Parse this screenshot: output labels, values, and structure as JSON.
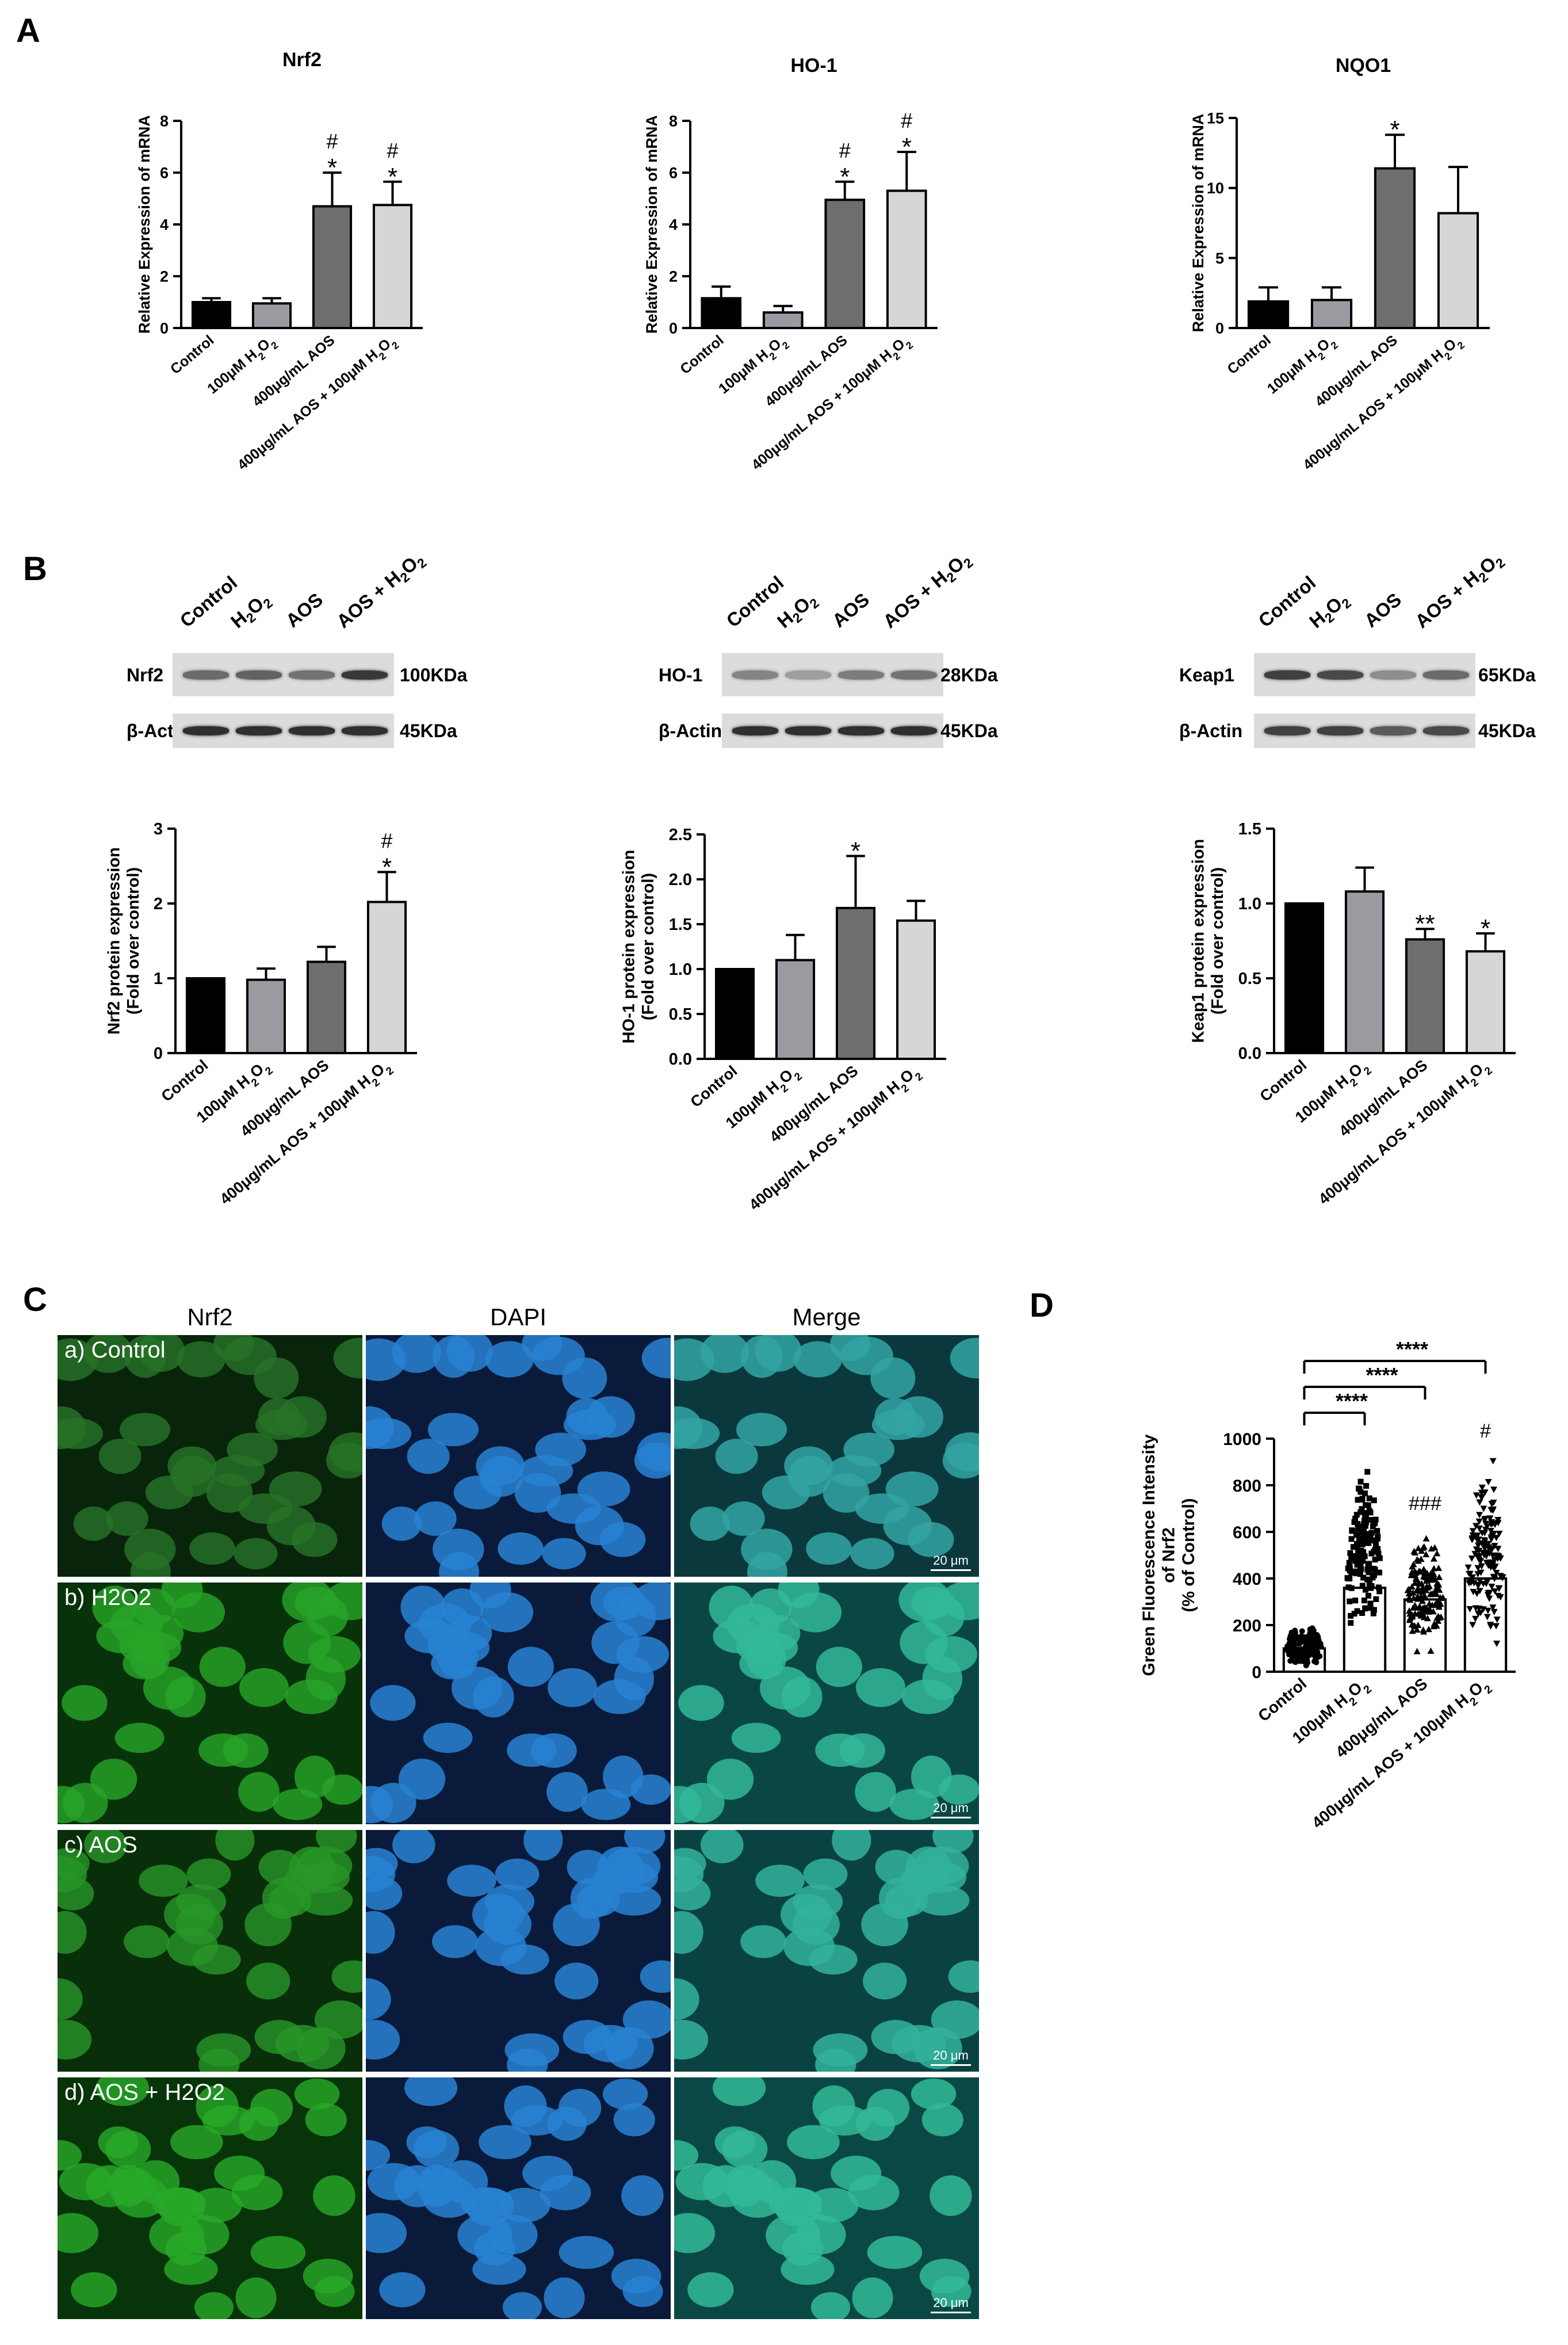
{
  "panels": {
    "a": "A",
    "b": "B",
    "c": "C",
    "d": "D"
  },
  "group_labels": [
    "Control",
    "100μM H2O2",
    "400μg/mL AOS",
    "400μg/mL AOS + 100μM H2O2"
  ],
  "western": {
    "lane_labels": [
      "Control",
      "H2O2",
      "AOS",
      "AOS + H2O2"
    ],
    "blots": [
      {
        "target": "Nrf2",
        "target_kda": "100KDa",
        "loading": "β-Actin",
        "loading_kda": "45KDa",
        "target_intensity": [
          0.55,
          0.6,
          0.5,
          0.85
        ],
        "loading_intensity": [
          0.9,
          0.9,
          0.9,
          0.9
        ]
      },
      {
        "target": "HO-1",
        "target_kda": "28KDa",
        "loading": "β-Actin",
        "loading_kda": "45KDa",
        "target_intensity": [
          0.4,
          0.25,
          0.45,
          0.5
        ],
        "loading_intensity": [
          0.9,
          0.9,
          0.9,
          0.9
        ]
      },
      {
        "target": "Keap1",
        "target_kda": "65KDa",
        "loading": "β-Actin",
        "loading_kda": "45KDa",
        "target_intensity": [
          0.8,
          0.75,
          0.35,
          0.55
        ],
        "loading_intensity": [
          0.8,
          0.8,
          0.65,
          0.75
        ]
      }
    ]
  },
  "microscopy": {
    "columns": [
      "Nrf2",
      "DAPI",
      "Merge"
    ],
    "rows": [
      "a) Control",
      "b) H2O2",
      "c) AOS",
      "d) AOS + H2O2"
    ],
    "scale_bar": "20 μm",
    "green_intensity": [
      0.35,
      0.85,
      0.7,
      0.9
    ]
  },
  "chart_data": [
    {
      "id": "A-Nrf2",
      "type": "bar",
      "title": "Nrf2",
      "xlabel": "",
      "ylabel": "Relative Expression of mRNA",
      "categories": [
        "Control",
        "100μM H2O2",
        "400μg/mL AOS",
        "400μg/mL AOS + 100μM H2O2"
      ],
      "values": [
        1.0,
        0.95,
        4.7,
        4.75
      ],
      "errors": [
        0.15,
        0.2,
        1.3,
        0.9
      ],
      "annotations": [
        "",
        "",
        "#\n*",
        "#\n*"
      ],
      "ylim": [
        0,
        8
      ],
      "yticks": [
        0,
        2,
        4,
        6,
        8
      ],
      "yticklabels": [
        "0",
        "2",
        "4",
        "6",
        "8"
      ]
    },
    {
      "id": "A-HO-1",
      "type": "bar",
      "title": "HO-1",
      "xlabel": "",
      "ylabel": "Relative Expression of mRNA",
      "categories": [
        "Control",
        "100μM H2O2",
        "400μg/mL AOS",
        "400μg/mL AOS + 100μM H2O2"
      ],
      "values": [
        1.15,
        0.6,
        4.95,
        5.3
      ],
      "errors": [
        0.45,
        0.25,
        0.7,
        1.5
      ],
      "annotations": [
        "",
        "",
        "#\n*",
        "#\n*"
      ],
      "ylim": [
        0,
        8
      ],
      "yticks": [
        0,
        2,
        4,
        6,
        8
      ],
      "yticklabels": [
        "0",
        "2",
        "4",
        "6",
        "8"
      ]
    },
    {
      "id": "A-NQO1",
      "type": "bar",
      "title": "NQO1",
      "xlabel": "",
      "ylabel": "Relative Expression of mRNA",
      "categories": [
        "Control",
        "100μM H2O2",
        "400μg/mL AOS",
        "400μg/mL AOS + 100μM H2O2"
      ],
      "values": [
        1.9,
        2.0,
        11.4,
        8.2
      ],
      "errors": [
        1.0,
        0.9,
        2.4,
        3.3
      ],
      "annotations": [
        "",
        "",
        "*",
        ""
      ],
      "ylim": [
        0,
        15
      ],
      "yticks": [
        0,
        5,
        10,
        15
      ],
      "yticklabels": [
        "0",
        "5",
        "10",
        "15"
      ]
    },
    {
      "id": "B-Nrf2",
      "type": "bar",
      "title": "",
      "xlabel": "",
      "ylabel": "Nrf2 protein expression\n(Fold over control)",
      "categories": [
        "Control",
        "100μM H2O2",
        "400μg/mL AOS",
        "400μg/mL AOS + 100μM H2O2"
      ],
      "values": [
        1.0,
        0.98,
        1.22,
        2.02
      ],
      "errors": [
        0,
        0.15,
        0.2,
        0.4
      ],
      "annotations": [
        "",
        "",
        "",
        "#\n*"
      ],
      "ylim": [
        0,
        3
      ],
      "yticks": [
        0,
        1,
        2,
        3
      ],
      "yticklabels": [
        "0",
        "1",
        "2",
        "3"
      ]
    },
    {
      "id": "B-HO-1",
      "type": "bar",
      "title": "",
      "xlabel": "",
      "ylabel": "HO-1 protein expression\n(Fold over control)",
      "categories": [
        "Control",
        "100μM H2O2",
        "400μg/mL AOS",
        "400μg/mL AOS + 100μM H2O2"
      ],
      "values": [
        1.0,
        1.1,
        1.68,
        1.54
      ],
      "errors": [
        0,
        0.28,
        0.58,
        0.22
      ],
      "annotations": [
        "",
        "",
        "*",
        ""
      ],
      "ylim": [
        0,
        2.5
      ],
      "yticks": [
        0,
        0.5,
        1,
        1.5,
        2,
        2.5
      ],
      "yticklabels": [
        "0.0",
        "0.5",
        "1.0",
        "1.5",
        "2.0",
        "2.5"
      ]
    },
    {
      "id": "B-Keap1",
      "type": "bar",
      "title": "",
      "xlabel": "",
      "ylabel": "Keap1 protein expression\n(Fold over control)",
      "categories": [
        "Control",
        "100μM H2O2",
        "400μg/mL AOS",
        "400μg/mL AOS + 100μM H2O2"
      ],
      "values": [
        1.0,
        1.08,
        0.76,
        0.68
      ],
      "errors": [
        0,
        0.16,
        0.07,
        0.12
      ],
      "annotations": [
        "",
        "",
        "**",
        "*"
      ],
      "ylim": [
        0,
        1.5
      ],
      "yticks": [
        0,
        0.5,
        1,
        1.5
      ],
      "yticklabels": [
        "0.0",
        "0.5",
        "1.0",
        "1.5"
      ]
    },
    {
      "id": "D",
      "type": "scatter",
      "title": "",
      "xlabel": "",
      "ylabel": "Green Fluorescence Intensity\nof Nrf2\n(% of Control)",
      "categories": [
        "Control",
        "100μM H2O2",
        "400μg/mL AOS",
        "400μg/mL AOS + 100μM H2O2"
      ],
      "means": [
        100,
        360,
        310,
        400
      ],
      "ranges": [
        [
          20,
          240
        ],
        [
          160,
          960
        ],
        [
          60,
          650
        ],
        [
          80,
          960
        ]
      ],
      "annotations": [
        "",
        "",
        "###",
        "#"
      ],
      "comparisons": [
        {
          "from": 0,
          "to": 1,
          "label": "****"
        },
        {
          "from": 0,
          "to": 2,
          "label": "****"
        },
        {
          "from": 0,
          "to": 3,
          "label": "****"
        }
      ],
      "ylim": [
        0,
        1000
      ],
      "yticks": [
        0,
        200,
        400,
        600,
        800,
        1000
      ],
      "yticklabels": [
        "0",
        "200",
        "400",
        "600",
        "800",
        "1000"
      ]
    }
  ]
}
